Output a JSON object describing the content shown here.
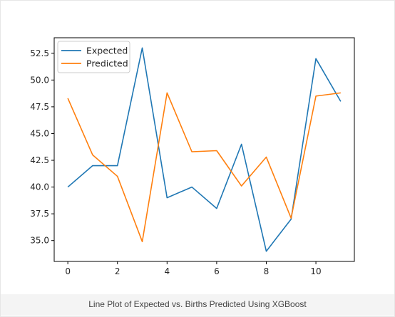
{
  "chart_data": {
    "type": "line",
    "x": [
      0,
      1,
      2,
      3,
      4,
      5,
      6,
      7,
      8,
      9,
      10,
      11
    ],
    "series": [
      {
        "name": "Expected",
        "color": "#1f77b4",
        "values": [
          40,
          42,
          42,
          53,
          39,
          40,
          38,
          44,
          34,
          37,
          52,
          48
        ]
      },
      {
        "name": "Predicted",
        "color": "#ff7f0e",
        "values": [
          48.3,
          43.0,
          41.0,
          34.9,
          48.8,
          43.3,
          43.4,
          40.1,
          42.8,
          37.1,
          48.5,
          48.8
        ]
      }
    ],
    "xticks": [
      "0",
      "2",
      "4",
      "6",
      "8",
      "10"
    ],
    "xtick_values": [
      0,
      2,
      4,
      6,
      8,
      10
    ],
    "yticks": [
      "35.0",
      "37.5",
      "40.0",
      "42.5",
      "45.0",
      "47.5",
      "50.0",
      "52.5"
    ],
    "ytick_values": [
      35.0,
      37.5,
      40.0,
      42.5,
      45.0,
      47.5,
      50.0,
      52.5
    ],
    "xlim": [
      -0.55,
      11.55
    ],
    "ylim": [
      33.05,
      53.95
    ],
    "grid": false,
    "legend_position": "top-left"
  },
  "caption": "Line Plot of Expected vs. Births Predicted Using XGBoost"
}
